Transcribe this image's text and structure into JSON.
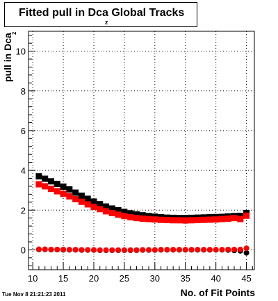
{
  "title": "Fitted pull in Dca",
  "title_suffix": "Global Tracks",
  "title_subscript": "z",
  "timestamp": "Tue Nov  8 21:21:23 2011",
  "chart_data": {
    "type": "scatter",
    "title": "Fitted pull in Dca_z Global Tracks",
    "xlabel": "No. of Fit Points",
    "ylabel": "pull in Dca",
    "ylabel_subscript": "z",
    "xlim": [
      9.3,
      46.3
    ],
    "ylim": [
      -1.0,
      11.0
    ],
    "xticks": [
      10,
      15,
      20,
      25,
      30,
      35,
      40,
      45
    ],
    "yticks": [
      0,
      2,
      4,
      6,
      8,
      10
    ],
    "grid": true,
    "legend": "none",
    "x": [
      11,
      12,
      13,
      14,
      15,
      16,
      17,
      18,
      19,
      20,
      21,
      22,
      23,
      24,
      25,
      26,
      27,
      28,
      29,
      30,
      31,
      32,
      33,
      34,
      35,
      36,
      37,
      38,
      39,
      40,
      41,
      42,
      43,
      44,
      45
    ],
    "series": [
      {
        "color": "#000000",
        "marker": "square",
        "values": [
          3.7,
          3.58,
          3.45,
          3.32,
          3.18,
          3.04,
          2.88,
          2.72,
          2.57,
          2.43,
          2.3,
          2.18,
          2.08,
          1.99,
          1.91,
          1.84,
          1.78,
          1.74,
          1.7,
          1.67,
          1.64,
          1.62,
          1.61,
          1.6,
          1.6,
          1.61,
          1.62,
          1.63,
          1.64,
          1.65,
          1.66,
          1.68,
          1.7,
          1.71,
          1.85
        ]
      },
      {
        "color": "#ff0000",
        "marker": "square",
        "values": [
          3.3,
          3.2,
          3.07,
          2.95,
          2.82,
          2.69,
          2.55,
          2.42,
          2.29,
          2.16,
          2.05,
          1.94,
          1.85,
          1.77,
          1.7,
          1.64,
          1.6,
          1.57,
          1.55,
          1.53,
          1.51,
          1.5,
          1.49,
          1.49,
          1.48,
          1.49,
          1.5,
          1.51,
          1.52,
          1.53,
          1.55,
          1.57,
          1.6,
          1.55,
          1.72
        ]
      },
      {
        "color": "#000000",
        "marker": "circle",
        "values": [
          0.02,
          0.02,
          0.01,
          0.01,
          0.0,
          0.0,
          0.0,
          -0.01,
          -0.01,
          -0.01,
          -0.02,
          -0.02,
          -0.02,
          -0.02,
          -0.02,
          -0.02,
          -0.02,
          -0.01,
          -0.01,
          -0.01,
          0.0,
          0.0,
          0.0,
          0.0,
          0.0,
          0.0,
          0.0,
          0.0,
          0.0,
          0.0,
          0.0,
          -0.01,
          -0.03,
          -0.05,
          -0.15
        ]
      },
      {
        "color": "#ff0000",
        "marker": "circle",
        "values": [
          0.03,
          0.03,
          0.02,
          0.02,
          0.02,
          0.01,
          0.01,
          0.0,
          0.0,
          0.0,
          -0.01,
          -0.01,
          -0.01,
          -0.01,
          -0.01,
          -0.01,
          -0.01,
          0.0,
          0.0,
          0.0,
          0.01,
          0.01,
          0.01,
          0.01,
          0.01,
          0.01,
          0.01,
          0.01,
          0.01,
          0.01,
          0.01,
          0.02,
          0.02,
          0.02,
          0.08
        ]
      }
    ]
  }
}
